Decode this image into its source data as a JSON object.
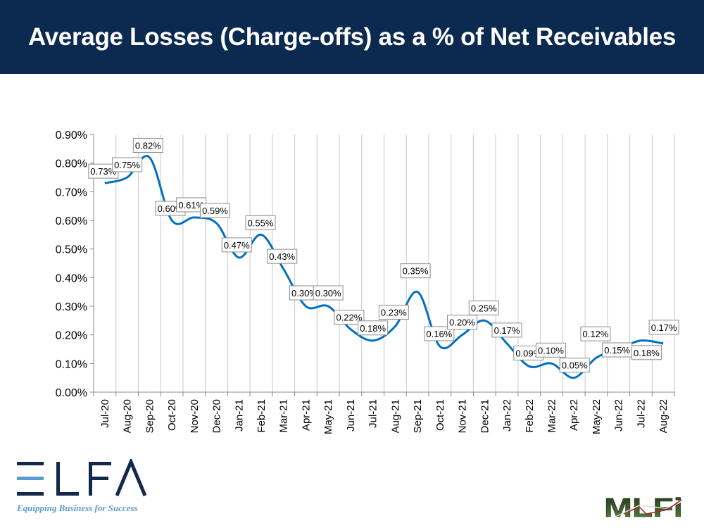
{
  "title": "Average Losses (Charge-offs) as a % of Net Receivables",
  "logos": {
    "elfa": {
      "text": "ELFA",
      "tagline": "Equipping Business for Success",
      "colors": [
        "#13294b",
        "#5b9bd5"
      ]
    },
    "mlfi": {
      "text": "MLFI"
    }
  },
  "chart_data": {
    "type": "line",
    "smooth": true,
    "title": "",
    "xlabel": "",
    "ylabel": "",
    "ylim": [
      0,
      0.9
    ],
    "yticks": [
      "0.00%",
      "0.10%",
      "0.20%",
      "0.30%",
      "0.40%",
      "0.50%",
      "0.60%",
      "0.70%",
      "0.80%",
      "0.90%"
    ],
    "grid": "vertical",
    "legend": "none",
    "line_color": "#0070c0",
    "categories": [
      "Jul-20",
      "Aug-20",
      "Sep-20",
      "Oct-20",
      "Nov-20",
      "Dec-20",
      "Jan-21",
      "Feb-21",
      "Mar-21",
      "Apr-21",
      "May-21",
      "Jun-21",
      "Jul-21",
      "Aug-21",
      "Sep-21",
      "Oct-21",
      "Nov-21",
      "Dec-21",
      "Jan-22",
      "Feb-22",
      "Mar-22",
      "Apr-22",
      "May-22",
      "Jun-22",
      "Jul-22",
      "Aug-22"
    ],
    "values": [
      0.73,
      0.75,
      0.82,
      0.6,
      0.61,
      0.59,
      0.47,
      0.55,
      0.43,
      0.3,
      0.3,
      0.22,
      0.18,
      0.23,
      0.35,
      0.16,
      0.2,
      0.25,
      0.17,
      0.09,
      0.1,
      0.05,
      0.12,
      0.15,
      0.18,
      0.17
    ],
    "data_labels": [
      "0.73%",
      "0.75%",
      "0.82%",
      "0.60%",
      "0.61%",
      "0.59%",
      "0.47%",
      "0.55%",
      "0.43%",
      "0.30%",
      "0.30%",
      "0.22%",
      "0.18%",
      "0.23%",
      "0.35%",
      "0.16%",
      "0.20%",
      "0.25%",
      "0.17%",
      "0.09%",
      "0.10%",
      "0.05%",
      "0.12%",
      "0.15%",
      "0.18%",
      "0.17%"
    ]
  }
}
